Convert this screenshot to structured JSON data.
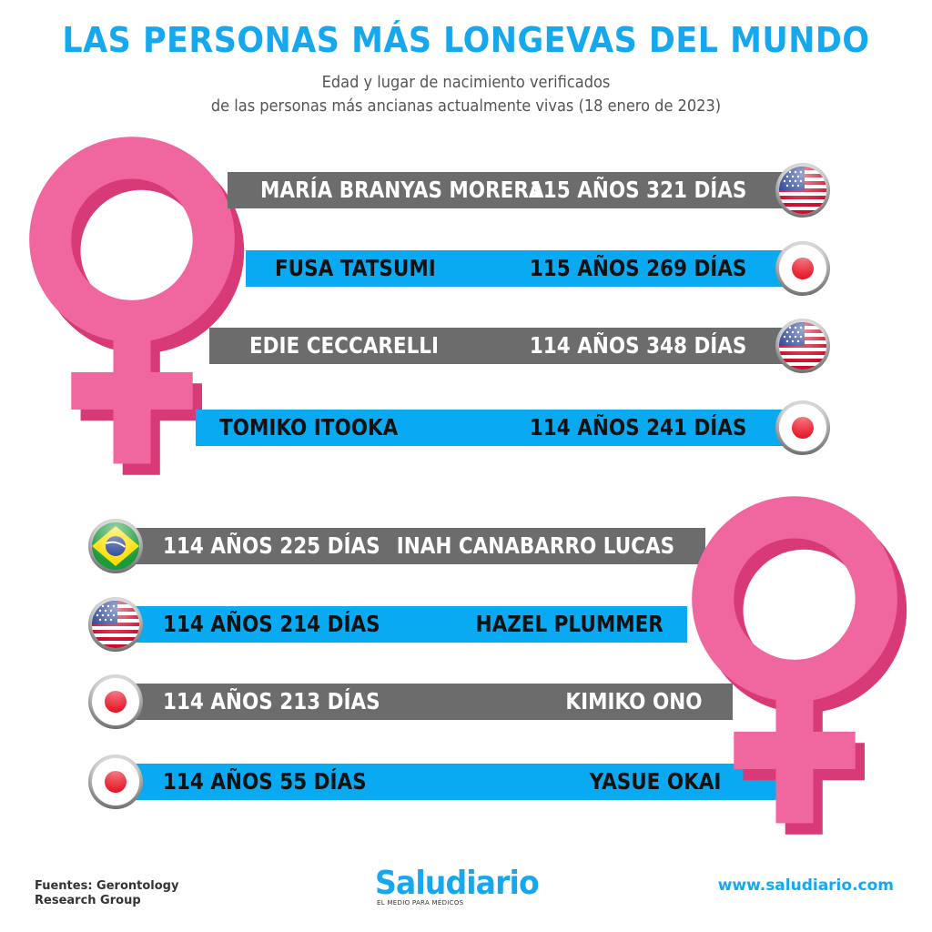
{
  "header": {
    "title": "LAS PERSONAS MÁS LONGEVAS DEL MUNDO",
    "subtitle_line1": "Edad y lugar de nacimiento verificados",
    "subtitle_line2": "de las personas más ancianas actualmente vivas (18 enero de 2023)"
  },
  "people": [
    {
      "name": "MARÍA BRANYAS MORERA",
      "age": "115 AÑOS  321 DÍAS",
      "flag": "usa-flag-icon"
    },
    {
      "name": "FUSA TATSUMI",
      "age": "115 AÑOS  269 DÍAS",
      "flag": "japan-flag-icon"
    },
    {
      "name": "EDIE CECCARELLI",
      "age": "114 AÑOS  348 DÍAS",
      "flag": "usa-flag-icon"
    },
    {
      "name": "TOMIKO ITOOKA",
      "age": "114 AÑOS  241 DÍAS",
      "flag": "japan-flag-icon"
    },
    {
      "name": "INAH CANABARRO LUCAS",
      "age": "114 AÑOS  225 DÍAS",
      "flag": "brazil-flag-icon"
    },
    {
      "name": "HAZEL PLUMMER",
      "age": "114 AÑOS  214 DÍAS",
      "flag": "usa-flag-icon"
    },
    {
      "name": "KIMIKO ONO",
      "age": "114 AÑOS  213 DÍAS",
      "flag": "japan-flag-icon"
    },
    {
      "name": "YASUE OKAI",
      "age": "114 AÑOS  55 DÍAS",
      "flag": "japan-flag-icon"
    }
  ],
  "colors": {
    "title": "#16a8ef",
    "bar_gray": "#6c6c6c",
    "bar_blue": "#0aaaf2",
    "female_symbol": "#f0669e",
    "female_symbol_shadow": "#d83a78"
  },
  "icons": [
    "female-symbol-icon",
    "usa-flag-icon",
    "japan-flag-icon",
    "brazil-flag-icon"
  ],
  "footer": {
    "source_line1": "Fuentes: Gerontology",
    "source_line2": "Research Group",
    "logo": "Saludiario",
    "tagline": "EL MEDIO PARA MÉDICOS",
    "url": "www.saludiario.com"
  }
}
